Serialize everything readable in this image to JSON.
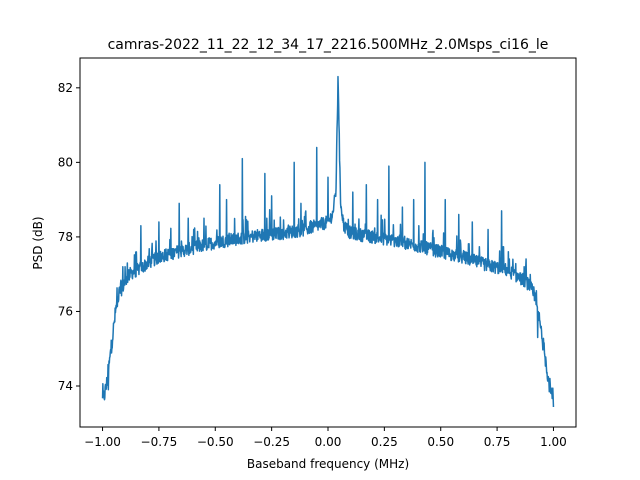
{
  "chart_data": {
    "type": "line",
    "title": "camras-2022_11_22_12_34_17_2216.500MHz_2.0Msps_ci16_le",
    "xlabel": "Baseband frequency (MHz)",
    "ylabel": "PSD (dB)",
    "xlim": [
      -1.1,
      1.1
    ],
    "ylim": [
      72.9,
      82.8
    ],
    "xticks": [
      -1.0,
      -0.75,
      -0.5,
      -0.25,
      0.0,
      0.25,
      0.5,
      0.75,
      1.0
    ],
    "xtick_labels": [
      "−1.00",
      "−0.75",
      "−0.50",
      "−0.25",
      "0.00",
      "0.25",
      "0.50",
      "0.75",
      "1.00"
    ],
    "yticks": [
      74,
      76,
      78,
      80,
      82
    ],
    "ytick_labels": [
      "74",
      "76",
      "78",
      "80",
      "82"
    ],
    "grid": false,
    "line_color": "#1f77b4",
    "series": [
      {
        "x": [
          -1.0,
          -0.99,
          -0.98,
          -0.97,
          -0.96,
          -0.95,
          -0.94,
          -0.93,
          -0.92,
          -0.9,
          -0.88,
          -0.85,
          -0.82,
          -0.8,
          -0.75,
          -0.7,
          -0.6,
          -0.5,
          -0.4,
          -0.3,
          -0.2,
          -0.1,
          -0.05,
          0.0,
          0.02,
          0.035,
          0.045,
          0.055,
          0.07,
          0.1,
          0.2,
          0.3,
          0.4,
          0.5,
          0.6,
          0.7,
          0.8,
          0.82,
          0.85,
          0.88,
          0.9,
          0.92,
          0.93,
          0.94,
          0.95,
          0.96,
          0.97,
          0.98,
          0.99,
          1.0
        ],
        "y": [
          73.6,
          73.8,
          74.1,
          74.6,
          75.1,
          75.6,
          76.1,
          76.4,
          76.6,
          76.8,
          77.0,
          77.1,
          77.2,
          77.3,
          77.45,
          77.55,
          77.7,
          77.85,
          77.95,
          78.05,
          78.1,
          78.2,
          78.3,
          78.4,
          78.6,
          79.2,
          82.3,
          79.0,
          78.3,
          78.1,
          78.0,
          77.9,
          77.75,
          77.6,
          77.45,
          77.25,
          77.1,
          77.0,
          76.9,
          76.8,
          76.6,
          76.3,
          76.0,
          75.7,
          75.3,
          74.9,
          74.5,
          74.1,
          73.8,
          73.5
        ]
      }
    ],
    "spikes": [
      {
        "x": -0.975,
        "y": 73.9
      },
      {
        "x": -0.91,
        "y": 77.2
      },
      {
        "x": -0.89,
        "y": 77.3
      },
      {
        "x": -0.85,
        "y": 77.6
      },
      {
        "x": -0.83,
        "y": 78.3
      },
      {
        "x": -0.75,
        "y": 78.4
      },
      {
        "x": -0.66,
        "y": 78.9
      },
      {
        "x": -0.62,
        "y": 78.5
      },
      {
        "x": -0.55,
        "y": 78.5
      },
      {
        "x": -0.48,
        "y": 79.4
      },
      {
        "x": -0.45,
        "y": 79.0
      },
      {
        "x": -0.38,
        "y": 80.1
      },
      {
        "x": -0.28,
        "y": 79.7
      },
      {
        "x": -0.25,
        "y": 79.1
      },
      {
        "x": -0.15,
        "y": 80.0
      },
      {
        "x": -0.12,
        "y": 78.9
      },
      {
        "x": -0.05,
        "y": 80.4
      },
      {
        "x": 0.0,
        "y": 79.6
      },
      {
        "x": 0.045,
        "y": 82.3
      },
      {
        "x": 0.11,
        "y": 79.2
      },
      {
        "x": 0.17,
        "y": 79.4
      },
      {
        "x": 0.22,
        "y": 79.0
      },
      {
        "x": 0.27,
        "y": 79.9
      },
      {
        "x": 0.33,
        "y": 78.8
      },
      {
        "x": 0.38,
        "y": 79.0
      },
      {
        "x": 0.43,
        "y": 80.0
      },
      {
        "x": 0.52,
        "y": 79.0
      },
      {
        "x": 0.58,
        "y": 78.6
      },
      {
        "x": 0.64,
        "y": 78.4
      },
      {
        "x": 0.71,
        "y": 78.2
      },
      {
        "x": 0.77,
        "y": 78.7
      },
      {
        "x": 0.82,
        "y": 77.4
      },
      {
        "x": 0.87,
        "y": 77.2
      },
      {
        "x": 0.93,
        "y": 75.3
      },
      {
        "x": 0.96,
        "y": 74.9
      },
      {
        "x": 0.985,
        "y": 74.2
      }
    ]
  }
}
